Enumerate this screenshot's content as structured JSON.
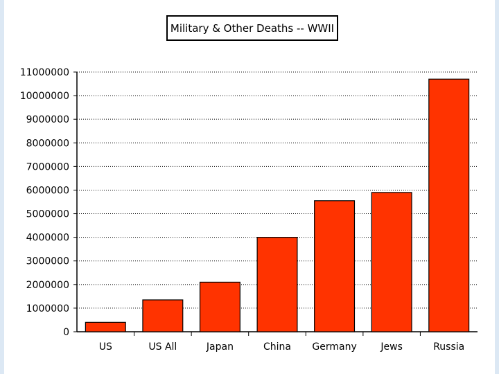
{
  "chart_data": {
    "type": "bar",
    "title": "Military & Other Deaths -- WWII",
    "xlabel": "",
    "ylabel": "",
    "categories": [
      "US",
      "US All",
      "Japan",
      "China",
      "Germany",
      "Jews",
      "Russia"
    ],
    "values": [
      400000,
      1350000,
      2100000,
      4000000,
      5550000,
      5900000,
      10700000
    ],
    "ylim": [
      0,
      11000000
    ],
    "yticks": [
      "0",
      "1000000",
      "2000000",
      "3000000",
      "4000000",
      "5000000",
      "6000000",
      "7000000",
      "8000000",
      "9000000",
      "10000000",
      "11000000"
    ],
    "grid": true,
    "legend": "none",
    "bar_color": "#ff3300"
  }
}
